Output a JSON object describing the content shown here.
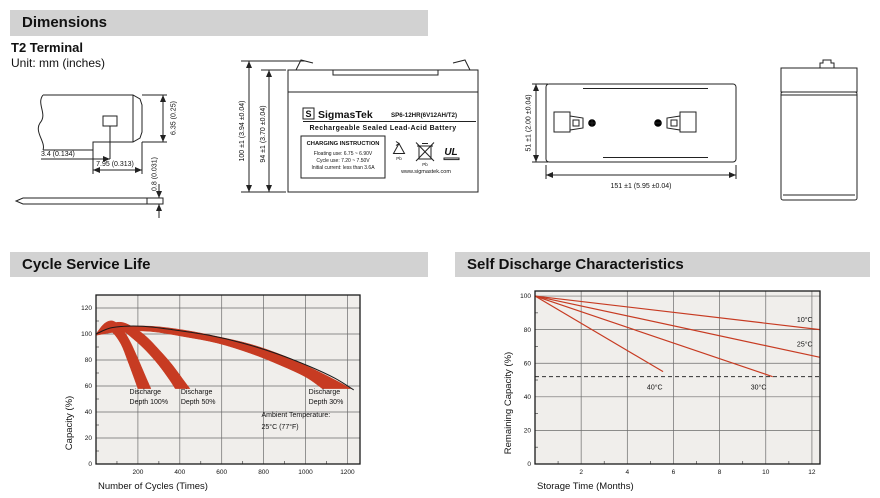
{
  "header": {
    "title": "Dimensions"
  },
  "terminal_info": {
    "type_label": "T2 Terminal",
    "unit_label": "Unit: mm (inches)"
  },
  "drawings": {
    "terminal_detail": {
      "tab_offset": "3.4 (0.134)",
      "tab_width": "7.95 (0.313)",
      "tab_height": "6.35 (0.25)",
      "plate_thickness": "0.8 (0.031)"
    },
    "front_view": {
      "dim_overall_height": "100 ±1 (3.94 ±0.04)",
      "dim_case_height": "94 ±1 (3.70 ±0.04)",
      "label": {
        "logo_letter": "S",
        "brand": "SigmasTek",
        "model": "SP6-12HR(6V12AH/T2)",
        "subtitle": "Rechargeable Sealed Lead-Acid Battery",
        "charging_title": "CHARGING INSTRUCTION",
        "charging_line1": "Floating use: 6.75 ~ 6.90V",
        "charging_line2": "Cycle use: 7.20 ~ 7.50V",
        "charging_line3": "Initial current: less than 3.6A",
        "recycle_pb": "Pb",
        "trash_pb": "Pb",
        "ul_text": "UL",
        "website": "www.sigmastek.com",
        "icons": [
          "recycle-pb-icon",
          "crossed-trash-pb-icon",
          "ul-certification-icon"
        ]
      }
    },
    "top_view": {
      "dim_width": "51 ±1 (2.00 ±0.04)",
      "dim_length": "151 ±1 (5.95 ±0.04)",
      "positive_terminal_color": "#d03526",
      "negative_terminal_color": "#141414"
    }
  },
  "colors": {
    "header_bar": "#d2d2d2",
    "accent_red": "#c73b22",
    "plot_bg": "#f0eeeb"
  },
  "chart_data": [
    {
      "type": "area",
      "title": "Cycle Service Life",
      "xlabel": "Number of Cycles (Times)",
      "ylabel": "Capacity (%)",
      "xlim": [
        0,
        1260
      ],
      "ylim": [
        0,
        130
      ],
      "xticks": [
        200,
        400,
        600,
        800,
        1000,
        1200
      ],
      "yticks": [
        0,
        20,
        40,
        60,
        80,
        100,
        120
      ],
      "xminor": 100,
      "yminor": 10,
      "grid": true,
      "plot_bg": "#f0eeeb",
      "band_color": "#c73b22",
      "bands": [
        {
          "name": "Discharge Depth 100%",
          "upper": [
            [
              0,
              100
            ],
            [
              40,
              108
            ],
            [
              80,
              110
            ],
            [
              120,
              105
            ],
            [
              160,
              95
            ],
            [
              200,
              81
            ],
            [
              240,
              66
            ],
            [
              262,
              58
            ]
          ],
          "lower": [
            [
              0,
              99
            ],
            [
              40,
              104
            ],
            [
              80,
              101
            ],
            [
              120,
              92
            ],
            [
              150,
              80
            ],
            [
              180,
              67
            ],
            [
              200,
              58
            ]
          ]
        },
        {
          "name": "Discharge Depth 50%",
          "upper": [
            [
              0,
              100
            ],
            [
              60,
              107
            ],
            [
              120,
              109
            ],
            [
              180,
              105
            ],
            [
              240,
              98
            ],
            [
              300,
              88
            ],
            [
              360,
              77
            ],
            [
              420,
              64
            ],
            [
              448,
              58
            ]
          ],
          "lower": [
            [
              0,
              99
            ],
            [
              60,
              103
            ],
            [
              120,
              103
            ],
            [
              180,
              96
            ],
            [
              240,
              87
            ],
            [
              300,
              76
            ],
            [
              350,
              65
            ],
            [
              378,
              58
            ]
          ]
        },
        {
          "name": "Discharge Depth 30%",
          "upper": [
            [
              0,
              100
            ],
            [
              120,
              105
            ],
            [
              260,
              106
            ],
            [
              420,
              103
            ],
            [
              580,
              98
            ],
            [
              740,
              92
            ],
            [
              900,
              83
            ],
            [
              1050,
              72
            ],
            [
              1160,
              63
            ],
            [
              1215,
              58
            ]
          ],
          "lower": [
            [
              0,
              99
            ],
            [
              120,
              102
            ],
            [
              260,
              102
            ],
            [
              420,
              98
            ],
            [
              580,
              93
            ],
            [
              740,
              85
            ],
            [
              880,
              76
            ],
            [
              1000,
              67
            ],
            [
              1080,
              58
            ]
          ]
        }
      ],
      "envelope_line": {
        "color": "#1a1a1a",
        "points": [
          [
            0,
            100
          ],
          [
            80,
            105
          ],
          [
            220,
            106
          ],
          [
            380,
            103
          ],
          [
            540,
            99
          ],
          [
            700,
            93
          ],
          [
            860,
            85
          ],
          [
            1020,
            75
          ],
          [
            1140,
            66
          ],
          [
            1230,
            57
          ]
        ]
      },
      "annotations": [
        {
          "text": "Discharge",
          "x": 160,
          "y": 54,
          "anchor": "start"
        },
        {
          "text": "Depth 100%",
          "x": 160,
          "y": 46,
          "anchor": "start"
        },
        {
          "text": "Discharge",
          "x": 405,
          "y": 54,
          "anchor": "start"
        },
        {
          "text": "Depth 50%",
          "x": 405,
          "y": 46,
          "anchor": "start"
        },
        {
          "text": "Discharge",
          "x": 1015,
          "y": 54,
          "anchor": "start"
        },
        {
          "text": "Depth 30%",
          "x": 1015,
          "y": 46,
          "anchor": "start"
        },
        {
          "text": "Ambient Temperature:",
          "x": 790,
          "y": 36,
          "anchor": "start"
        },
        {
          "text": "25°C (77°F)",
          "x": 790,
          "y": 27,
          "anchor": "start"
        }
      ]
    },
    {
      "type": "line",
      "title": "Self Discharge Characteristics",
      "xlabel": "Storage Time (Months)",
      "ylabel": "Remaining Capacity (%)",
      "xlim": [
        0,
        12.35
      ],
      "ylim": [
        0,
        103
      ],
      "xticks": [
        2,
        4,
        6,
        8,
        10,
        12
      ],
      "yticks": [
        0,
        20,
        40,
        60,
        80,
        100
      ],
      "xminor": 1,
      "yminor": 10,
      "grid": true,
      "plot_bg": "#f0eeeb",
      "line_color": "#c73b22",
      "series": [
        {
          "name": "10°C",
          "points": [
            [
              0,
              100
            ],
            [
              12.35,
              80
            ]
          ],
          "label_at": [
            11.35,
            84.5
          ]
        },
        {
          "name": "25°C",
          "points": [
            [
              0,
              100
            ],
            [
              12.35,
              63.5
            ]
          ],
          "label_at": [
            11.35,
            70
          ]
        },
        {
          "name": "30°C",
          "points": [
            [
              0,
              100
            ],
            [
              10.3,
              52
            ]
          ],
          "label_at": [
            9.35,
            44.5
          ]
        },
        {
          "name": "40°C",
          "points": [
            [
              0,
              100
            ],
            [
              5.55,
              55
            ]
          ],
          "label_at": [
            4.85,
            44.5
          ]
        }
      ],
      "dashed_guide": {
        "y": 52,
        "x0": 0,
        "x1": 12.35
      }
    }
  ]
}
